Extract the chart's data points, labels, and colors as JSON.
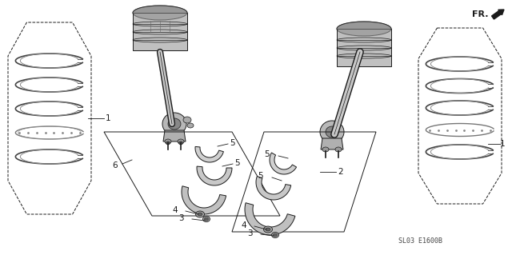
{
  "background_color": "#ffffff",
  "diagram_code": "SL03 E1600B",
  "fr_label": "FR.",
  "fig_width": 6.4,
  "fig_height": 3.19,
  "dpi": 100,
  "line_color": "#1a1a1a",
  "gray_fill": "#c8c8c8",
  "dark_gray": "#888888",
  "label_fontsize": 7.5,
  "code_fontsize": 6.0
}
